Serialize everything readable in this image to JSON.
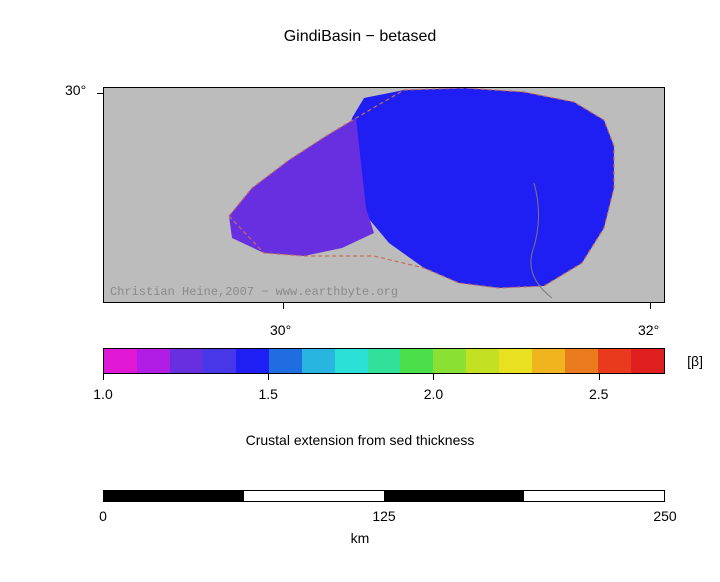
{
  "title": "GindiBasin − betased",
  "map": {
    "bg_color": "#bcbcbc",
    "watermark": "Christian Heine,2007 − www.earthbyte.org",
    "watermark_color": "#8a8a8a",
    "y_ticks": [
      "30°"
    ],
    "x_ticks": [
      "30°",
      "32°"
    ],
    "x_range_deg": [
      28.5,
      32.0
    ],
    "y_range_deg": [
      29.6,
      30.1
    ],
    "basin": {
      "purple_color": "#682fe0",
      "blue_color": "#1f1ff4",
      "outline_color": "#c76b5a",
      "divider_color": "#7a7a7a"
    }
  },
  "colorbar": {
    "unit": "[β]",
    "segments": [
      "#e018d6",
      "#b21de6",
      "#682fe0",
      "#4737e9",
      "#1f1ff4",
      "#1f6de0",
      "#28b6e0",
      "#2be0d6",
      "#33e09a",
      "#4be04b",
      "#8ae033",
      "#c4e023",
      "#e8e021",
      "#f0b41f",
      "#ea7a1e",
      "#ea3a1e",
      "#e01f1f"
    ],
    "min": 1.0,
    "max": 2.7,
    "tick_labels": [
      {
        "value": "1.0",
        "pos_frac": 0.0
      },
      {
        "value": "1.5",
        "pos_frac": 0.294
      },
      {
        "value": "2.0",
        "pos_frac": 0.588
      },
      {
        "value": "2.5",
        "pos_frac": 0.882
      }
    ]
  },
  "subtitle": "Crustal extension from sed thickness",
  "scalebar": {
    "segments": [
      {
        "color": "#000000",
        "width_frac": 0.25
      },
      {
        "color": "#ffffff",
        "width_frac": 0.25
      },
      {
        "color": "#000000",
        "width_frac": 0.25
      },
      {
        "color": "#ffffff",
        "width_frac": 0.25
      }
    ],
    "labels": [
      {
        "text": "0",
        "pos_frac": 0.0
      },
      {
        "text": "125",
        "pos_frac": 0.5
      },
      {
        "text": "250",
        "pos_frac": 1.0
      }
    ],
    "unit": "km"
  }
}
